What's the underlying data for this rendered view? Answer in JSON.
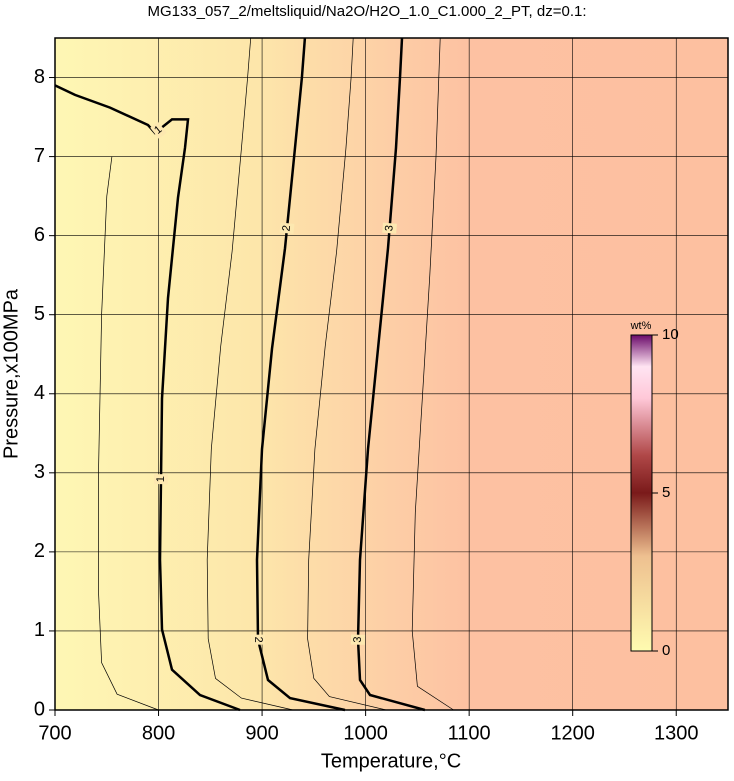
{
  "chart_data": {
    "type": "contour",
    "title": "MG133_057_2/meltsliquid/Na2O/H2O_1.0_C1.000_2_PT, dz=0.1:",
    "x_label": "Temperature,°C",
    "y_label": "Pressure,x100MPa",
    "xlim": [
      700,
      1350
    ],
    "ylim": [
      0,
      8.5
    ],
    "xticks": [
      700,
      800,
      900,
      1000,
      1100,
      1200,
      1300
    ],
    "yticks": [
      0,
      1,
      2,
      3,
      4,
      5,
      6,
      7,
      8
    ],
    "grid": true,
    "contours": [
      {
        "level": 0.5,
        "labeled": false,
        "x": [
          800,
          760,
          745,
          742,
          742,
          745,
          750,
          755
        ],
        "y": [
          0,
          0.2,
          0.6,
          1.5,
          3,
          5,
          6.5,
          7.0
        ]
      },
      {
        "level": 1,
        "labeled": true,
        "x": [
          878.7,
          840.0,
          813.0,
          803.3,
          801.4,
          803.3,
          809.1,
          818.8,
          825.6,
          828.5,
          813.0,
          796.6,
          789.8,
          753.1,
          719.3,
          700
        ],
        "y": [
          0,
          0.19,
          0.51,
          1.02,
          1.9,
          3.94,
          5.21,
          6.48,
          7.11,
          7.47,
          7.47,
          7.3,
          7.4,
          7.62,
          7.78,
          7.9
        ]
      },
      {
        "level": 1.5,
        "labeled": false,
        "x": [
          930,
          880,
          855,
          848,
          847,
          851,
          860,
          871,
          880,
          886,
          889
        ],
        "y": [
          0,
          0.15,
          0.4,
          0.9,
          1.9,
          3.3,
          4.6,
          5.8,
          7.1,
          8.0,
          8.5
        ]
      },
      {
        "level": 2,
        "labeled": true,
        "x": [
          980.1,
          927.0,
          905.7,
          896.1,
          895.1,
          899.9,
          909.6,
          922.1,
          931.8,
          938.5,
          941.4
        ],
        "y": [
          0,
          0.15,
          0.38,
          0.89,
          1.9,
          3.3,
          4.57,
          5.84,
          7.11,
          8.0,
          8.5
        ]
      },
      {
        "level": 2.5,
        "labeled": false,
        "x": [
          1020,
          965,
          950,
          944,
          945,
          951,
          961,
          972,
          981,
          986,
          988
        ],
        "y": [
          0,
          0.17,
          0.4,
          0.9,
          1.9,
          3.3,
          4.6,
          5.8,
          7.1,
          8.0,
          8.5
        ]
      },
      {
        "level": 3,
        "labeled": true,
        "x": [
          1057.3,
          1004.2,
          994.6,
          992.6,
          994.6,
          1002.3,
          1012.0,
          1021.6,
          1029.3,
          1033.2,
          1035.1
        ],
        "y": [
          0,
          0.19,
          0.38,
          0.89,
          1.9,
          3.3,
          4.57,
          5.84,
          7.11,
          8.0,
          8.5
        ]
      },
      {
        "level": 3.5,
        "labeled": false,
        "x": [
          1085,
          1050,
          1045,
          1048,
          1055,
          1062,
          1068,
          1072
        ],
        "y": [
          0,
          0.3,
          1,
          2.5,
          4,
          5.5,
          7,
          8.5
        ]
      }
    ],
    "colorbar": {
      "label": "wt%",
      "lim": [
        0,
        10
      ],
      "ticks": [
        0,
        5,
        10
      ]
    }
  }
}
